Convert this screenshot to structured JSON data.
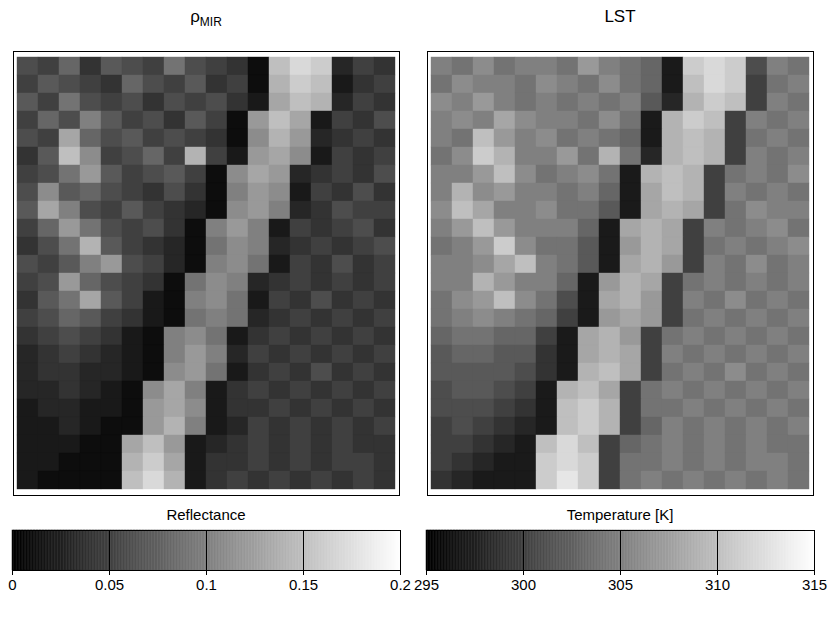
{
  "chart_data": [
    {
      "type": "heatmap",
      "title": "ρ",
      "title_subscript": "MIR",
      "color": "gray",
      "tick_labels": false,
      "colorbar": {
        "label": "Reflectance",
        "range": [
          0,
          0.2
        ],
        "ticks": [
          0,
          0.05,
          0.1,
          0.15,
          0.2
        ]
      },
      "cells": [
        [
          0.06,
          0.05,
          0.08,
          0.04,
          0.07,
          0.06,
          0.05,
          0.09,
          0.06,
          0.05,
          0.04,
          0.01,
          0.15,
          0.17,
          0.16,
          0.03,
          0.05,
          0.04
        ],
        [
          0.05,
          0.07,
          0.06,
          0.05,
          0.04,
          0.08,
          0.06,
          0.05,
          0.07,
          0.04,
          0.05,
          0.01,
          0.14,
          0.16,
          0.15,
          0.02,
          0.04,
          0.05
        ],
        [
          0.07,
          0.05,
          0.09,
          0.06,
          0.05,
          0.06,
          0.04,
          0.06,
          0.05,
          0.06,
          0.04,
          0.02,
          0.13,
          0.15,
          0.14,
          0.03,
          0.05,
          0.04
        ],
        [
          0.05,
          0.08,
          0.06,
          0.1,
          0.07,
          0.05,
          0.06,
          0.04,
          0.07,
          0.05,
          0.01,
          0.12,
          0.15,
          0.13,
          0.02,
          0.05,
          0.04,
          0.06
        ],
        [
          0.06,
          0.05,
          0.13,
          0.08,
          0.06,
          0.07,
          0.05,
          0.06,
          0.05,
          0.04,
          0.01,
          0.11,
          0.14,
          0.12,
          0.03,
          0.04,
          0.05,
          0.04
        ],
        [
          0.04,
          0.07,
          0.15,
          0.11,
          0.05,
          0.06,
          0.08,
          0.05,
          0.14,
          0.05,
          0.02,
          0.12,
          0.13,
          0.11,
          0.02,
          0.05,
          0.04,
          0.05
        ],
        [
          0.05,
          0.06,
          0.09,
          0.12,
          0.07,
          0.05,
          0.06,
          0.07,
          0.05,
          0.01,
          0.11,
          0.13,
          0.12,
          0.03,
          0.04,
          0.05,
          0.04,
          0.06
        ],
        [
          0.06,
          0.11,
          0.07,
          0.08,
          0.06,
          0.05,
          0.04,
          0.06,
          0.04,
          0.01,
          0.1,
          0.12,
          0.11,
          0.02,
          0.05,
          0.04,
          0.06,
          0.04
        ],
        [
          0.07,
          0.13,
          0.1,
          0.06,
          0.05,
          0.07,
          0.05,
          0.04,
          0.03,
          0.01,
          0.11,
          0.12,
          0.1,
          0.03,
          0.04,
          0.06,
          0.05,
          0.05
        ],
        [
          0.05,
          0.08,
          0.12,
          0.09,
          0.06,
          0.05,
          0.06,
          0.04,
          0.01,
          0.1,
          0.12,
          0.1,
          0.02,
          0.05,
          0.04,
          0.05,
          0.06,
          0.04
        ],
        [
          0.04,
          0.06,
          0.09,
          0.14,
          0.07,
          0.05,
          0.04,
          0.03,
          0.01,
          0.09,
          0.11,
          0.1,
          0.03,
          0.04,
          0.05,
          0.04,
          0.05,
          0.06
        ],
        [
          0.06,
          0.05,
          0.07,
          0.1,
          0.12,
          0.06,
          0.05,
          0.03,
          0.01,
          0.1,
          0.11,
          0.09,
          0.02,
          0.05,
          0.04,
          0.06,
          0.04,
          0.05
        ],
        [
          0.05,
          0.06,
          0.12,
          0.08,
          0.06,
          0.05,
          0.04,
          0.01,
          0.09,
          0.11,
          0.1,
          0.03,
          0.04,
          0.05,
          0.04,
          0.05,
          0.04,
          0.05
        ],
        [
          0.04,
          0.07,
          0.09,
          0.13,
          0.07,
          0.05,
          0.02,
          0.01,
          0.1,
          0.11,
          0.09,
          0.02,
          0.05,
          0.04,
          0.06,
          0.04,
          0.05,
          0.04
        ],
        [
          0.05,
          0.06,
          0.08,
          0.07,
          0.05,
          0.04,
          0.02,
          0.01,
          0.09,
          0.1,
          0.09,
          0.03,
          0.04,
          0.05,
          0.04,
          0.05,
          0.04,
          0.05
        ],
        [
          0.04,
          0.05,
          0.06,
          0.05,
          0.04,
          0.02,
          0.01,
          0.1,
          0.11,
          0.09,
          0.02,
          0.04,
          0.05,
          0.04,
          0.05,
          0.04,
          0.05,
          0.04
        ],
        [
          0.03,
          0.04,
          0.05,
          0.04,
          0.03,
          0.02,
          0.01,
          0.1,
          0.12,
          0.1,
          0.03,
          0.05,
          0.04,
          0.05,
          0.04,
          0.05,
          0.04,
          0.05
        ],
        [
          0.03,
          0.04,
          0.04,
          0.03,
          0.03,
          0.02,
          0.01,
          0.11,
          0.12,
          0.09,
          0.02,
          0.04,
          0.05,
          0.04,
          0.06,
          0.04,
          0.05,
          0.04
        ],
        [
          0.03,
          0.03,
          0.04,
          0.03,
          0.02,
          0.01,
          0.11,
          0.13,
          0.1,
          0.02,
          0.04,
          0.05,
          0.04,
          0.05,
          0.04,
          0.05,
          0.04,
          0.05
        ],
        [
          0.02,
          0.03,
          0.03,
          0.02,
          0.02,
          0.01,
          0.12,
          0.13,
          0.11,
          0.02,
          0.04,
          0.04,
          0.05,
          0.04,
          0.05,
          0.04,
          0.05,
          0.04
        ],
        [
          0.02,
          0.02,
          0.03,
          0.02,
          0.01,
          0.01,
          0.12,
          0.14,
          0.1,
          0.02,
          0.03,
          0.05,
          0.04,
          0.05,
          0.04,
          0.05,
          0.04,
          0.05
        ],
        [
          0.02,
          0.02,
          0.02,
          0.01,
          0.01,
          0.13,
          0.15,
          0.12,
          0.02,
          0.03,
          0.04,
          0.05,
          0.04,
          0.05,
          0.04,
          0.05,
          0.04,
          0.04
        ],
        [
          0.02,
          0.02,
          0.01,
          0.01,
          0.01,
          0.14,
          0.16,
          0.13,
          0.02,
          0.04,
          0.04,
          0.05,
          0.04,
          0.05,
          0.04,
          0.05,
          0.05,
          0.04
        ],
        [
          0.02,
          0.01,
          0.01,
          0.01,
          0.01,
          0.15,
          0.17,
          0.14,
          0.02,
          0.04,
          0.05,
          0.04,
          0.05,
          0.04,
          0.05,
          0.04,
          0.05,
          0.04
        ]
      ]
    },
    {
      "type": "heatmap",
      "title": "LST",
      "color": "gray",
      "tick_labels": false,
      "colorbar": {
        "label": "Temperature [K]",
        "range": [
          295,
          315
        ],
        "ticks": [
          295,
          300,
          305,
          310,
          315
        ]
      },
      "cells": [
        [
          305,
          304,
          306,
          304,
          305,
          305,
          304,
          307,
          305,
          304,
          303,
          297,
          311,
          312,
          311,
          301,
          305,
          304
        ],
        [
          304,
          306,
          305,
          305,
          304,
          306,
          305,
          304,
          306,
          304,
          303,
          297,
          310,
          312,
          311,
          300,
          304,
          305
        ],
        [
          306,
          305,
          307,
          305,
          304,
          305,
          304,
          305,
          304,
          305,
          302,
          298,
          309,
          311,
          310,
          300,
          305,
          304
        ],
        [
          305,
          306,
          305,
          308,
          306,
          305,
          305,
          304,
          306,
          304,
          297,
          309,
          311,
          310,
          300,
          305,
          304,
          305
        ],
        [
          305,
          304,
          310,
          307,
          305,
          306,
          304,
          305,
          304,
          303,
          297,
          309,
          310,
          309,
          300,
          304,
          305,
          304
        ],
        [
          304,
          306,
          311,
          309,
          305,
          305,
          307,
          304,
          309,
          304,
          298,
          309,
          310,
          309,
          300,
          305,
          304,
          305
        ],
        [
          305,
          305,
          307,
          310,
          306,
          304,
          305,
          306,
          304,
          297,
          309,
          310,
          309,
          300,
          304,
          305,
          304,
          306
        ],
        [
          305,
          309,
          306,
          307,
          305,
          305,
          304,
          305,
          303,
          297,
          308,
          310,
          309,
          300,
          305,
          304,
          305,
          304
        ],
        [
          306,
          310,
          308,
          305,
          305,
          306,
          304,
          304,
          302,
          297,
          308,
          309,
          308,
          300,
          304,
          306,
          305,
          305
        ],
        [
          305,
          307,
          310,
          307,
          305,
          305,
          305,
          303,
          297,
          308,
          309,
          308,
          300,
          305,
          304,
          305,
          306,
          304
        ],
        [
          304,
          305,
          307,
          311,
          306,
          304,
          304,
          302,
          297,
          307,
          309,
          308,
          300,
          304,
          305,
          304,
          305,
          306
        ],
        [
          305,
          305,
          306,
          308,
          310,
          305,
          304,
          302,
          297,
          308,
          309,
          307,
          300,
          305,
          304,
          306,
          304,
          305
        ],
        [
          305,
          305,
          309,
          307,
          305,
          305,
          303,
          297,
          307,
          309,
          308,
          300,
          304,
          305,
          304,
          305,
          304,
          305
        ],
        [
          304,
          306,
          307,
          310,
          306,
          304,
          301,
          297,
          308,
          309,
          307,
          300,
          305,
          304,
          306,
          304,
          305,
          304
        ],
        [
          304,
          305,
          306,
          305,
          304,
          303,
          300,
          297,
          307,
          308,
          307,
          300,
          304,
          305,
          304,
          305,
          304,
          305
        ],
        [
          303,
          304,
          304,
          303,
          303,
          300,
          297,
          308,
          309,
          307,
          300,
          304,
          305,
          304,
          305,
          304,
          305,
          304
        ],
        [
          302,
          303,
          303,
          302,
          302,
          299,
          297,
          308,
          309,
          308,
          300,
          305,
          304,
          305,
          304,
          305,
          304,
          305
        ],
        [
          302,
          302,
          302,
          302,
          301,
          299,
          297,
          309,
          310,
          308,
          300,
          304,
          305,
          304,
          306,
          304,
          305,
          304
        ],
        [
          301,
          302,
          302,
          301,
          300,
          297,
          309,
          310,
          308,
          300,
          304,
          305,
          304,
          305,
          304,
          305,
          304,
          305
        ],
        [
          301,
          301,
          301,
          300,
          299,
          297,
          310,
          311,
          309,
          300,
          304,
          304,
          305,
          304,
          305,
          304,
          305,
          304
        ],
        [
          300,
          301,
          300,
          299,
          298,
          297,
          310,
          311,
          309,
          300,
          303,
          305,
          304,
          305,
          304,
          305,
          304,
          305
        ],
        [
          300,
          300,
          299,
          298,
          297,
          310,
          312,
          310,
          300,
          303,
          304,
          305,
          304,
          305,
          304,
          305,
          304,
          304
        ],
        [
          300,
          299,
          298,
          297,
          297,
          311,
          312,
          311,
          300,
          304,
          304,
          305,
          304,
          305,
          304,
          305,
          305,
          304
        ],
        [
          299,
          298,
          297,
          297,
          297,
          311,
          313,
          311,
          300,
          304,
          305,
          304,
          305,
          304,
          305,
          304,
          305,
          304
        ]
      ]
    }
  ]
}
